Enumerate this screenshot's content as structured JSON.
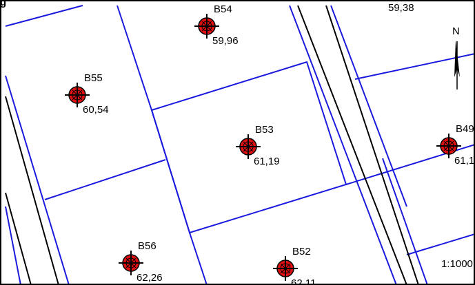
{
  "header_text": "g",
  "points": [
    {
      "id": "B54",
      "elevation": "59,96"
    },
    {
      "id": "B55",
      "elevation": "60,54"
    },
    {
      "id": "B53",
      "elevation": "61,19"
    },
    {
      "id": "B49",
      "elevation": "61,1"
    },
    {
      "id": "B56",
      "elevation": "62,26"
    },
    {
      "id": "B52",
      "elevation": "62,11"
    }
  ],
  "corner_label": "59,38",
  "north": "N",
  "scale": "1:1000"
}
